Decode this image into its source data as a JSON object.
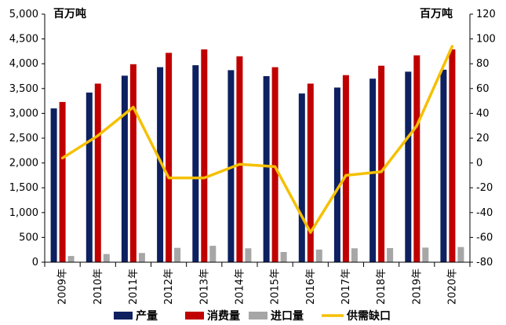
{
  "chart_data": {
    "type": "bar",
    "categories": [
      "2009年",
      "2010年",
      "2011年",
      "2012年",
      "2013年",
      "2014年",
      "2015年",
      "2016年",
      "2017年",
      "2018年",
      "2019年",
      "2020年"
    ],
    "series": [
      {
        "name": "产量",
        "axis": "left",
        "kind": "bar",
        "values": [
          3100,
          3420,
          3760,
          3930,
          3970,
          3870,
          3750,
          3400,
          3520,
          3700,
          3840,
          3880
        ]
      },
      {
        "name": "消费量",
        "axis": "left",
        "kind": "bar",
        "values": [
          3230,
          3600,
          3990,
          4220,
          4290,
          4150,
          3930,
          3600,
          3770,
          3960,
          4170,
          4290
        ]
      },
      {
        "name": "进口量",
        "axis": "left",
        "kind": "bar",
        "values": [
          125,
          165,
          185,
          290,
          330,
          280,
          205,
          255,
          280,
          285,
          295,
          305
        ]
      },
      {
        "name": "供需缺口",
        "axis": "right",
        "kind": "line",
        "values": [
          4,
          22,
          45,
          -12,
          -12,
          -1,
          -3,
          -56,
          -10,
          -7,
          30,
          94
        ]
      }
    ],
    "left_axis": {
      "unit_label": "百万吨",
      "min": 0,
      "max": 5000,
      "step": 500,
      "tick_labels": [
        "0",
        "500",
        "1,000",
        "1,500",
        "2,000",
        "2,500",
        "3,000",
        "3,500",
        "4,000",
        "4,500",
        "5,000"
      ]
    },
    "right_axis": {
      "unit_label": "百万吨",
      "min": -80,
      "max": 120,
      "step": 20,
      "tick_labels": [
        "-80",
        "-60",
        "-40",
        "-20",
        "0",
        "20",
        "40",
        "60",
        "80",
        "100",
        "120"
      ]
    },
    "colors": {
      "产量": "#0d2060",
      "消费量": "#c00000",
      "进口量": "#a6a6a6",
      "供需缺口": "#f5c000"
    },
    "legend_position": "bottom",
    "grid": false
  }
}
